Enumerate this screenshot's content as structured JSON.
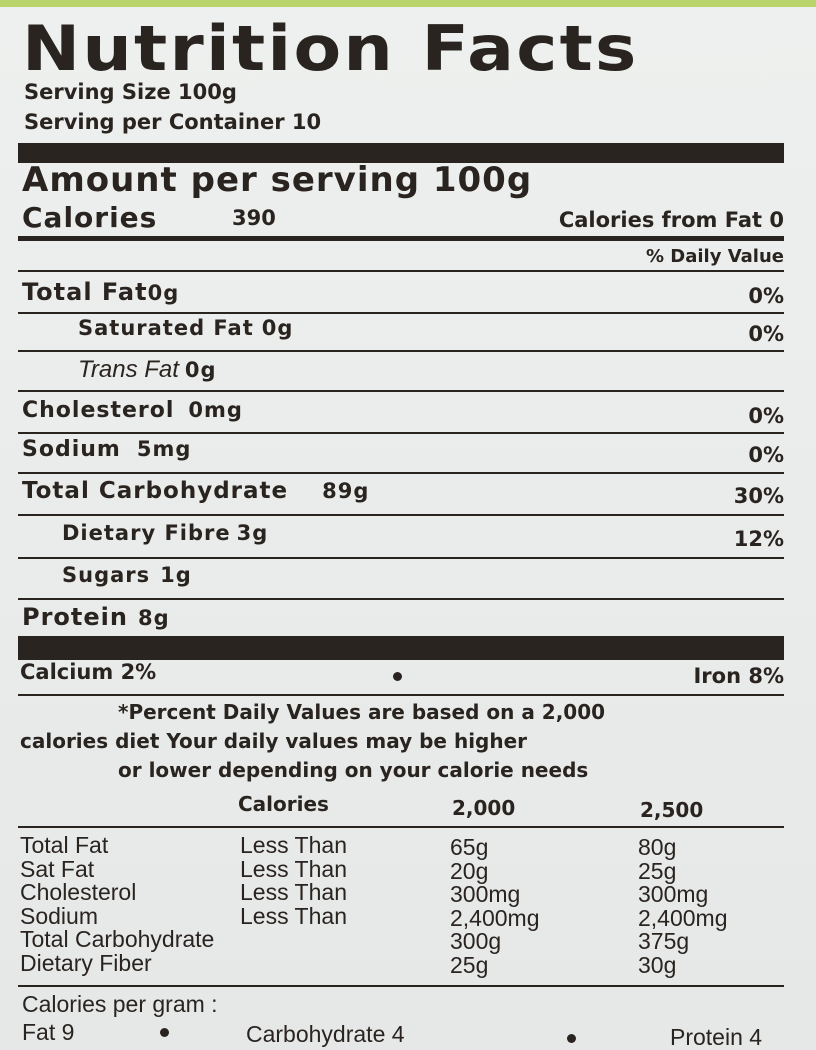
{
  "header": {
    "title": "Nutrition Facts",
    "serving_size": "Serving Size 100g",
    "servings_per_container": "Serving per Container 10"
  },
  "amount_per_serving": "Amount per serving 100g",
  "calories": {
    "label": "Calories",
    "value": "390",
    "from_fat": "Calories from Fat 0"
  },
  "daily_value_header": "% Daily Value",
  "nutrients": [
    {
      "name": "Total Fat",
      "amount": "0g",
      "dv": "0%"
    },
    {
      "name": "Saturated Fat",
      "amount": "0g",
      "dv": "0%"
    },
    {
      "name": "Trans Fat",
      "amount": "0g"
    },
    {
      "name": "Cholesterol",
      "amount": "0mg",
      "dv": "0%"
    },
    {
      "name": "Sodium",
      "amount": "5mg",
      "dv": "0%"
    },
    {
      "name": "Total Carbohydrate",
      "amount": "89g",
      "dv": "30%"
    },
    {
      "name": "Dietary Fibre",
      "amount": "3g",
      "dv": "12%"
    },
    {
      "name": "Sugars",
      "amount": "1g"
    },
    {
      "name": "Protein",
      "amount": "8g"
    }
  ],
  "vitamins": [
    "Calcium 2%",
    "Iron 8%"
  ],
  "footnote": [
    "*Percent Daily Values are based on a 2,000",
    "calories diet Your daily values may be higher",
    "or lower depending on your calorie needs"
  ],
  "reference": {
    "header": [
      "Calories",
      "2,000",
      "2,500"
    ],
    "rows": [
      {
        "name": "Total Fat",
        "limit": "Less Than",
        "v2000": "65g",
        "v2500": "80g"
      },
      {
        "name": "Sat Fat",
        "limit": "Less Than",
        "v2000": "20g",
        "v2500": "25g"
      },
      {
        "name": "Cholesterol",
        "limit": "Less Than",
        "v2000": "300mg",
        "v2500": "300mg"
      },
      {
        "name": "Sodium",
        "limit": "Less Than",
        "v2000": "2,400mg",
        "v2500": "2,400mg"
      },
      {
        "name": "Total Carbohydrate",
        "v2000": "300g",
        "v2500": "375g"
      },
      {
        "name": "Dietary Fiber",
        "v2000": "25g",
        "v2500": "30g"
      }
    ]
  },
  "calories_per_gram": {
    "label": "Calories per gram :",
    "items": [
      "Fat 9",
      "Carbohydrate 4",
      "Protein 4"
    ]
  }
}
